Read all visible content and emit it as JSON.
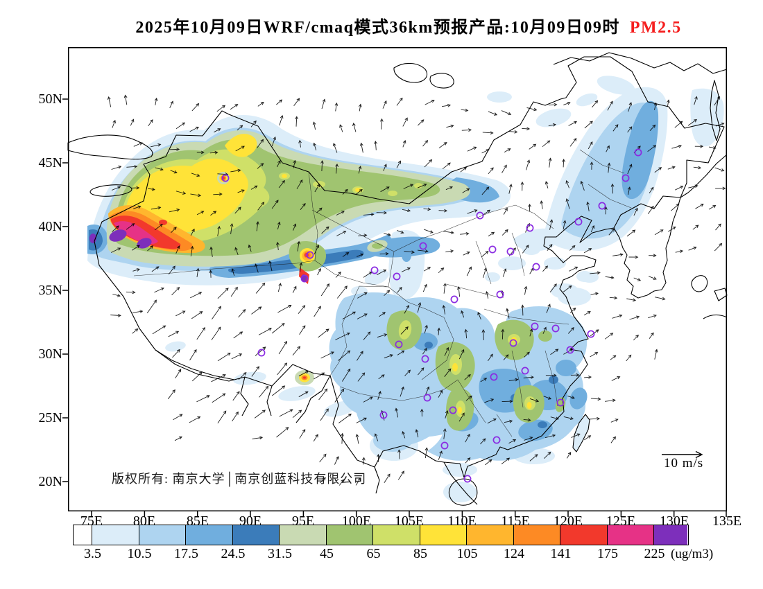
{
  "title": {
    "main": "2025年10月09日WRF/cmaq模式36km预报产品:10月09日09时",
    "pollutant": "PM2.5",
    "pollutant_color": "#f51d1d"
  },
  "axes": {
    "lat": [
      "50N",
      "45N",
      "40N",
      "35N",
      "30N",
      "25N",
      "20N"
    ],
    "lon": [
      "75E",
      "80E",
      "85E",
      "90E",
      "95E",
      "100E",
      "105E",
      "110E",
      "115E",
      "120E",
      "125E",
      "130E",
      "135E"
    ]
  },
  "map": {
    "copyright": "版权所有: 南京大学│南京创蓝科技有限公司",
    "wind_legend": "10 m/s",
    "station_marker_color": "#8a2be2",
    "stations": [
      [
        227,
        189
      ],
      [
        349,
        300
      ],
      [
        341,
        334
      ],
      [
        442,
        322
      ],
      [
        474,
        331
      ],
      [
        512,
        287
      ],
      [
        594,
        243
      ],
      [
        612,
        292
      ],
      [
        638,
        295
      ],
      [
        666,
        261
      ],
      [
        675,
        317
      ],
      [
        623,
        357
      ],
      [
        557,
        364
      ],
      [
        736,
        252
      ],
      [
        770,
        229
      ],
      [
        804,
        189
      ],
      [
        822,
        152
      ],
      [
        754,
        414
      ],
      [
        703,
        406
      ],
      [
        724,
        437
      ],
      [
        673,
        403
      ],
      [
        642,
        427
      ],
      [
        614,
        476
      ],
      [
        659,
        467
      ],
      [
        477,
        429
      ],
      [
        515,
        450
      ],
      [
        518,
        506
      ],
      [
        279,
        441
      ],
      [
        455,
        531
      ],
      [
        555,
        524
      ],
      [
        543,
        575
      ],
      [
        618,
        567
      ],
      [
        576,
        623
      ],
      [
        710,
        513
      ]
    ]
  },
  "colorbar": {
    "unit": "(ug/m3)",
    "ticks": [
      "3.5",
      "10.5",
      "17.5",
      "24.5",
      "31.5",
      "45",
      "65",
      "85",
      "105",
      "124",
      "141",
      "175",
      "225"
    ],
    "colors": [
      "#ffffff",
      "#dcedf9",
      "#aed4f0",
      "#70aede",
      "#3b7cba",
      "#c9dab3",
      "#a0c470",
      "#cfe068",
      "#ffe338",
      "#ffb62e",
      "#fd8a24",
      "#f2392c",
      "#e63286",
      "#7d2fbb"
    ]
  }
}
